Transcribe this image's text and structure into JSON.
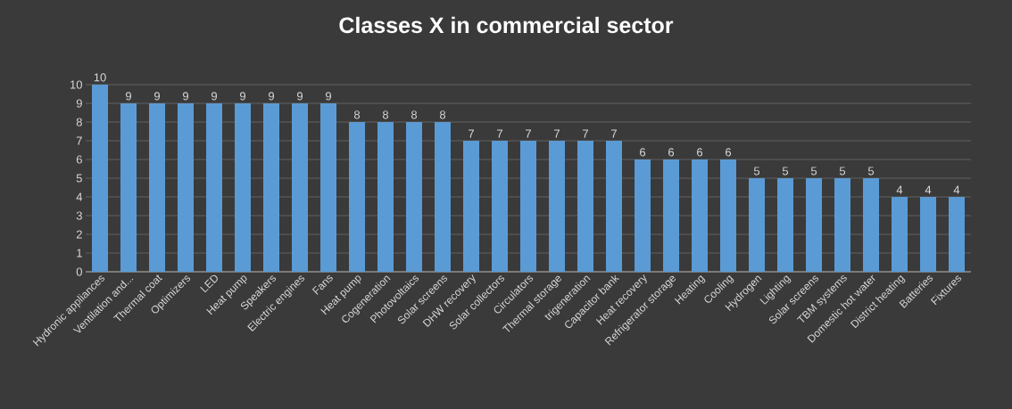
{
  "chart_data": {
    "type": "bar",
    "title": "Classes X in commercial sector",
    "categories": [
      "Hydronic appliances",
      "Ventilation and...",
      "Thermal coat",
      "Optimizers",
      "LED",
      "Heat pump",
      "Speakers",
      "Electric engines",
      "Fans",
      "Heat pump",
      "Cogeneration",
      "Photovoltaics",
      "Solar screens",
      "DHW recovery",
      "Solar collectors",
      "Circulators",
      "Thermal storage",
      "trigeneration",
      "Capacitor bank",
      "Heat recovery",
      "Refrigerator storage",
      "Heating",
      "Cooling",
      "Hydrogen",
      "Lighting",
      "Solar screens",
      "TBM systems",
      "Domestic hot water",
      "District heating",
      "Batteries",
      "Fixtures"
    ],
    "values": [
      10,
      9,
      9,
      9,
      9,
      9,
      9,
      9,
      9,
      8,
      8,
      8,
      8,
      7,
      7,
      7,
      7,
      7,
      7,
      6,
      6,
      6,
      6,
      5,
      5,
      5,
      5,
      5,
      4,
      4,
      4
    ],
    "color": "#5b9bd5",
    "ylim": [
      0,
      10
    ],
    "yticks": [
      0,
      1,
      2,
      3,
      4,
      5,
      6,
      7,
      8,
      9,
      10
    ],
    "grid": true,
    "data_labels": true
  }
}
